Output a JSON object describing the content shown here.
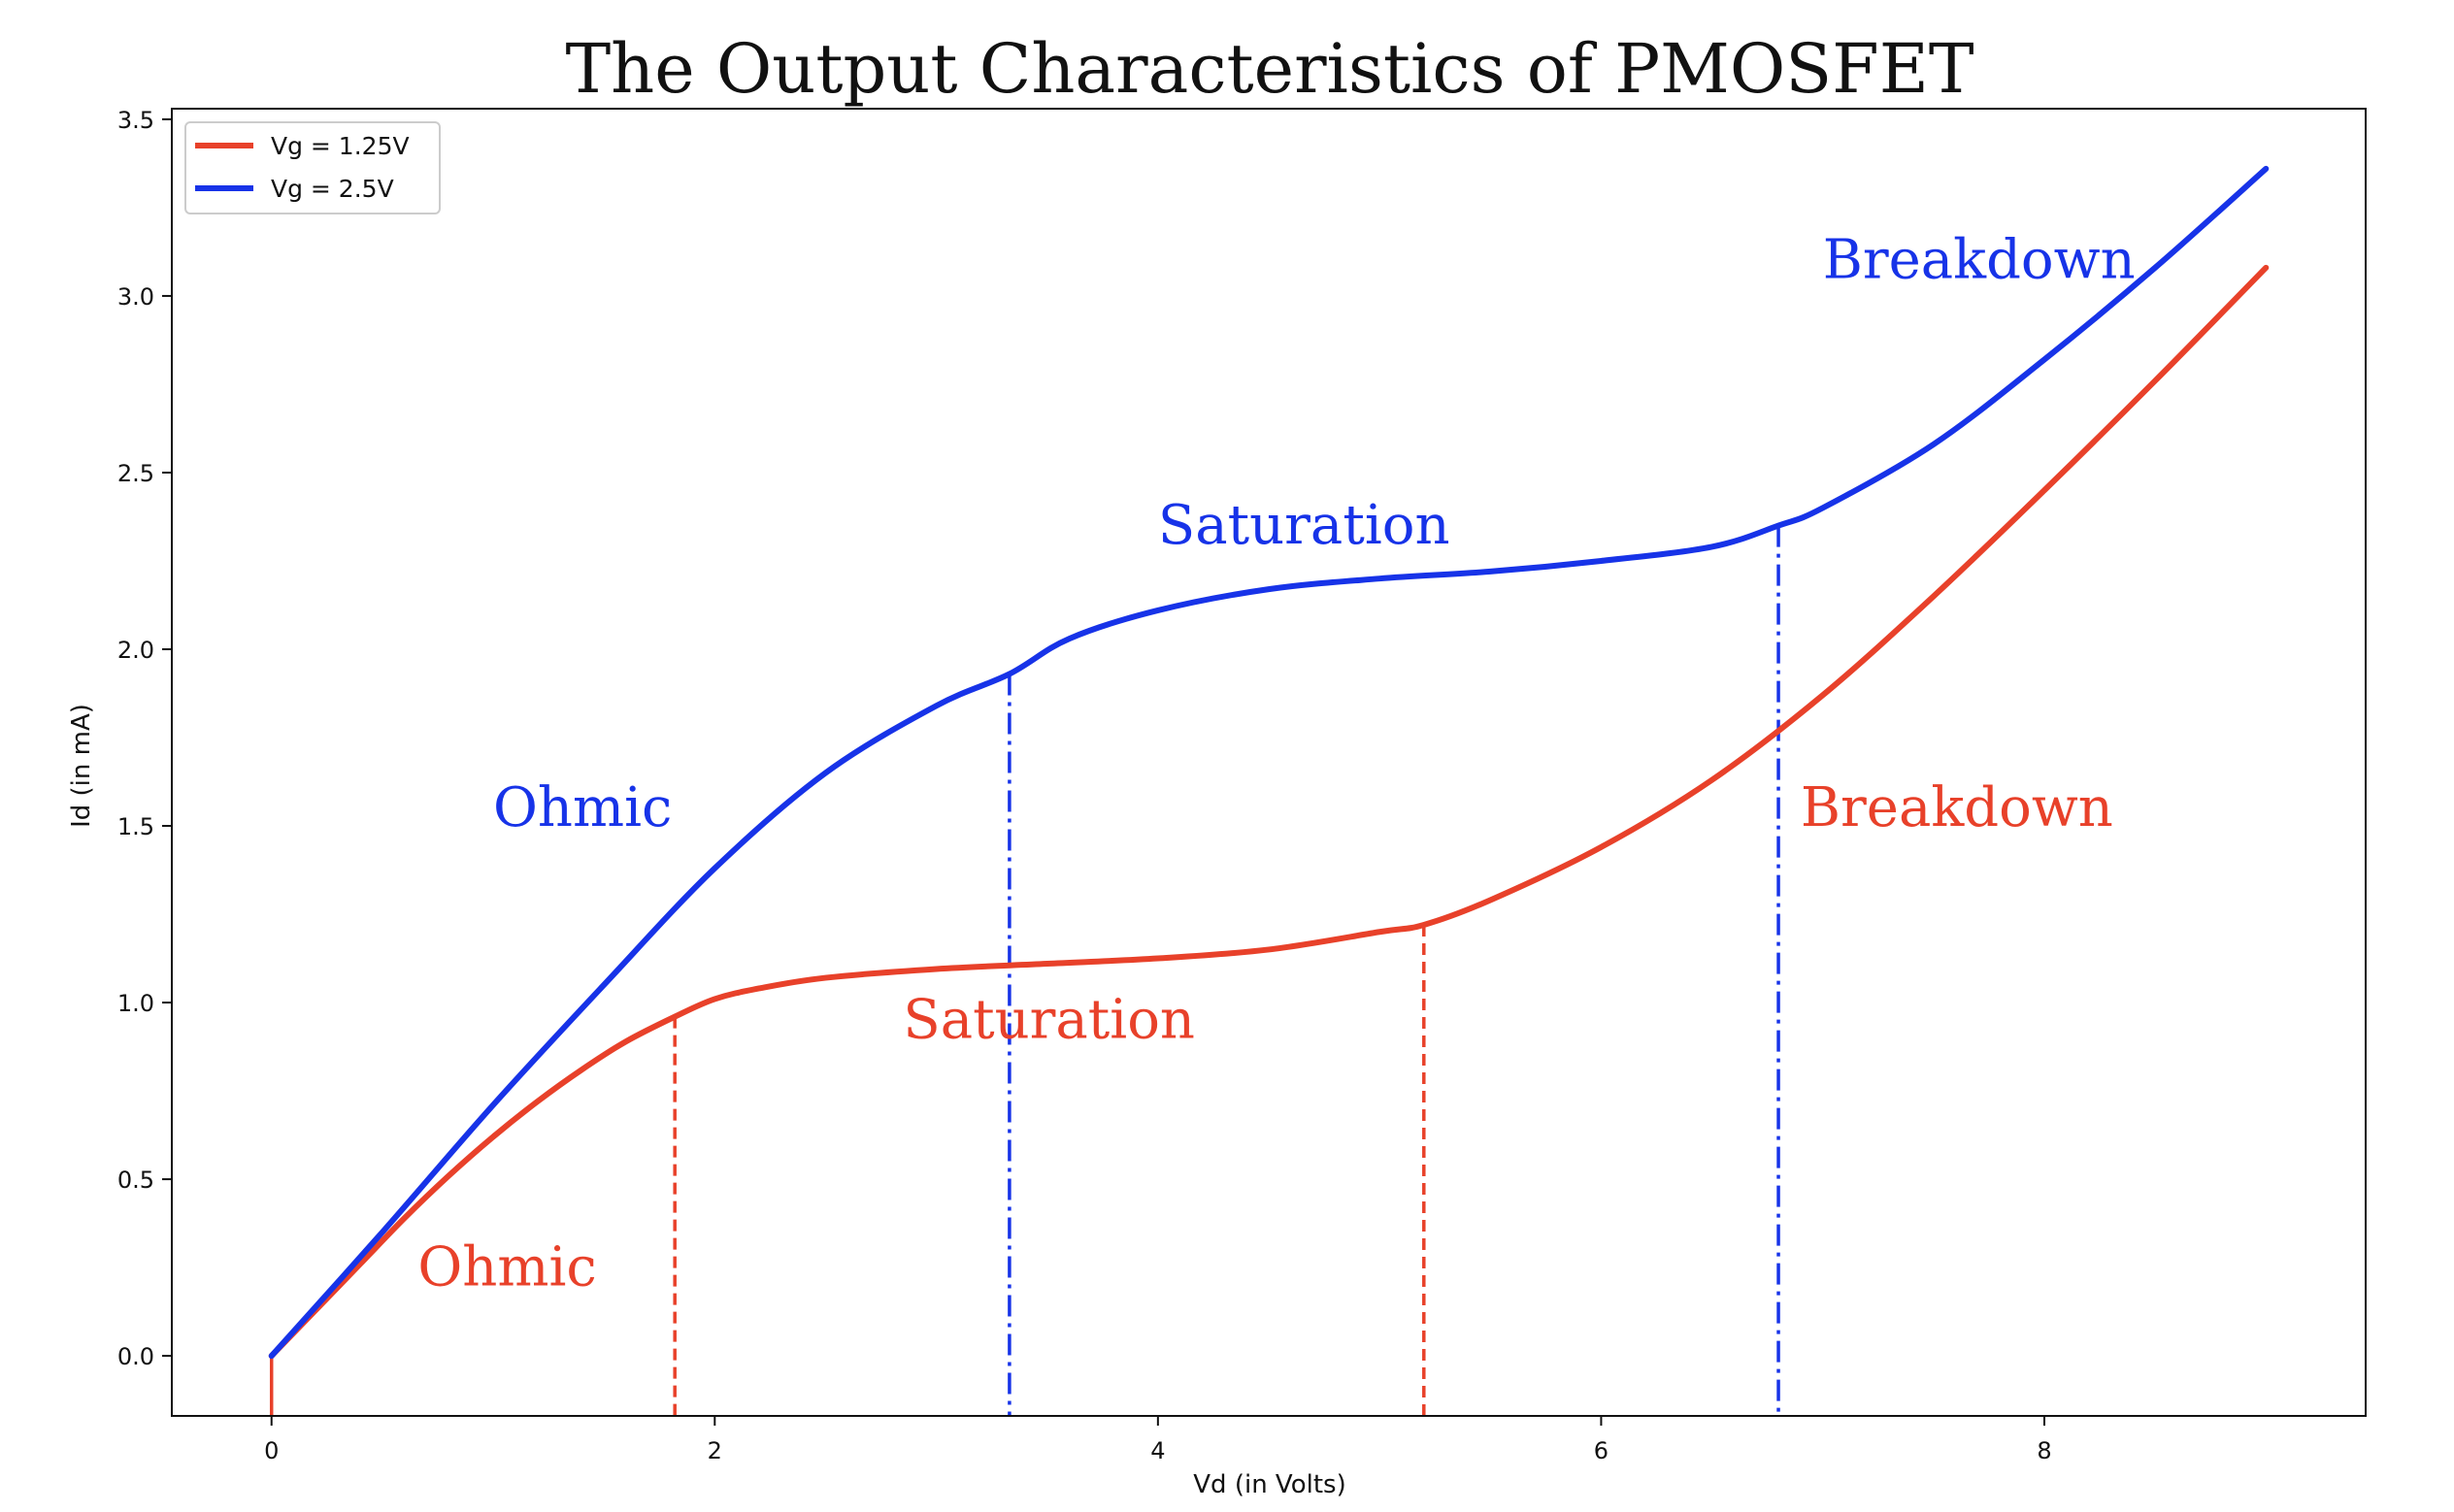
{
  "chart_data": {
    "type": "line",
    "title": "The Output Characteristics of PMOSFET",
    "xlabel": "Vd (in Volts)",
    "ylabel": "Id (in mA)",
    "xlim": [
      -0.45,
      9.45
    ],
    "ylim": [
      -0.17,
      3.53
    ],
    "xticks": [
      0,
      2,
      4,
      6,
      8
    ],
    "yticks": [
      0.0,
      0.5,
      1.0,
      1.5,
      2.0,
      2.5,
      3.0,
      3.5
    ],
    "xtick_labels": [
      "0",
      "2",
      "4",
      "6",
      "8"
    ],
    "ytick_labels": [
      "0.0",
      "0.5",
      "1.0",
      "1.5",
      "2.0",
      "2.5",
      "3.0",
      "3.5"
    ],
    "grid": false,
    "legend_position": "top-left",
    "series": [
      {
        "name": "Vg = 1.25V",
        "color": "#e8412a",
        "x": [
          0,
          0.2,
          0.4,
          0.6,
          0.8,
          1.0,
          1.2,
          1.4,
          1.6,
          1.82,
          2.0,
          2.2,
          2.5,
          3.0,
          3.5,
          4.0,
          4.5,
          5.0,
          5.2,
          5.5,
          6.0,
          6.5,
          7.0,
          7.5,
          8.0,
          8.5,
          9.0
        ],
        "y": [
          0,
          0.13,
          0.26,
          0.39,
          0.51,
          0.62,
          0.72,
          0.81,
          0.89,
          0.96,
          1.01,
          1.04,
          1.07,
          1.095,
          1.11,
          1.125,
          1.15,
          1.2,
          1.22,
          1.29,
          1.44,
          1.63,
          1.87,
          2.15,
          2.45,
          2.76,
          3.08
        ]
      },
      {
        "name": "Vg = 2.5V",
        "color": "#1733e8",
        "x": [
          0,
          0.5,
          1.0,
          1.5,
          2.0,
          2.5,
          3.0,
          3.33,
          3.6,
          4.0,
          4.5,
          5.0,
          5.5,
          6.0,
          6.5,
          6.8,
          7.0,
          7.5,
          8.0,
          8.5,
          9.0
        ],
        "y": [
          0,
          0.35,
          0.71,
          1.05,
          1.38,
          1.65,
          1.84,
          1.93,
          2.03,
          2.11,
          2.17,
          2.2,
          2.22,
          2.25,
          2.29,
          2.35,
          2.4,
          2.58,
          2.82,
          3.08,
          3.36
        ]
      }
    ],
    "region_lines": [
      {
        "series": "Vg = 1.25V",
        "x": 1.82,
        "y_top": 0.96,
        "style": "dashed",
        "color": "#e8412a"
      },
      {
        "series": "Vg = 1.25V",
        "x": 5.2,
        "y_top": 1.22,
        "style": "dashed",
        "color": "#e8412a"
      },
      {
        "series": "Vg = 2.5V",
        "x": 3.33,
        "y_top": 1.93,
        "style": "dashdot",
        "color": "#1733e8"
      },
      {
        "series": "Vg = 2.5V",
        "x": 6.8,
        "y_top": 2.35,
        "style": "dashdot",
        "color": "#1733e8"
      }
    ],
    "annotations": [
      {
        "text": "Ohmic",
        "x": 1.0,
        "y": 1.5,
        "color": "#1733e8"
      },
      {
        "text": "Saturation",
        "x": 4.0,
        "y": 2.3,
        "color": "#1733e8"
      },
      {
        "text": "Breakdown",
        "x": 7.0,
        "y": 3.05,
        "color": "#1733e8"
      },
      {
        "text": "Ohmic",
        "x": 0.66,
        "y": 0.2,
        "color": "#e8412a"
      },
      {
        "text": "Saturation",
        "x": 2.85,
        "y": 0.9,
        "color": "#e8412a"
      },
      {
        "text": "Breakdown",
        "x": 6.9,
        "y": 1.5,
        "color": "#e8412a"
      }
    ]
  }
}
